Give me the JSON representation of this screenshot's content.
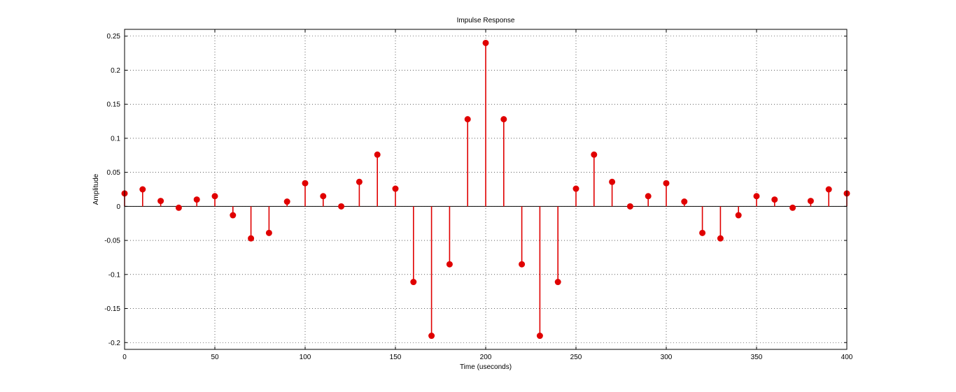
{
  "chart_data": {
    "type": "stem",
    "title": "Impulse Response",
    "xlabel": "Time (useconds)",
    "ylabel": "Amplitude",
    "xlim": [
      0,
      400
    ],
    "ylim": [
      -0.21,
      0.26
    ],
    "xticks": [
      0,
      50,
      100,
      150,
      200,
      250,
      300,
      350,
      400
    ],
    "yticks": [
      -0.2,
      -0.15,
      -0.1,
      -0.05,
      0,
      0.05,
      0.1,
      0.15,
      0.2,
      0.25
    ],
    "xtick_labels": [
      "0",
      "50",
      "100",
      "150",
      "200",
      "250",
      "300",
      "350",
      "400"
    ],
    "ytick_labels": [
      "-0.2",
      "-0.15",
      "-0.1",
      "-0.05",
      "0",
      "0.05",
      "0.1",
      "0.15",
      "0.2",
      "0.25"
    ],
    "grid": true,
    "color": "#e00000",
    "x": [
      0,
      10,
      20,
      30,
      40,
      50,
      60,
      70,
      80,
      90,
      100,
      110,
      120,
      130,
      140,
      150,
      160,
      170,
      180,
      190,
      200,
      210,
      220,
      230,
      240,
      250,
      260,
      270,
      280,
      290,
      300,
      310,
      320,
      330,
      340,
      350,
      360,
      370,
      380,
      390,
      400
    ],
    "values": [
      0.019,
      0.025,
      0.008,
      -0.002,
      0.01,
      0.015,
      -0.013,
      -0.047,
      -0.039,
      0.007,
      0.034,
      0.015,
      0.0,
      0.036,
      0.076,
      0.026,
      -0.111,
      -0.19,
      -0.085,
      0.128,
      0.24,
      0.128,
      -0.085,
      -0.19,
      -0.111,
      0.026,
      0.076,
      0.036,
      0.0,
      0.015,
      0.034,
      0.007,
      -0.039,
      -0.047,
      -0.013,
      0.015,
      0.01,
      -0.002,
      0.008,
      0.025,
      0.019
    ]
  }
}
